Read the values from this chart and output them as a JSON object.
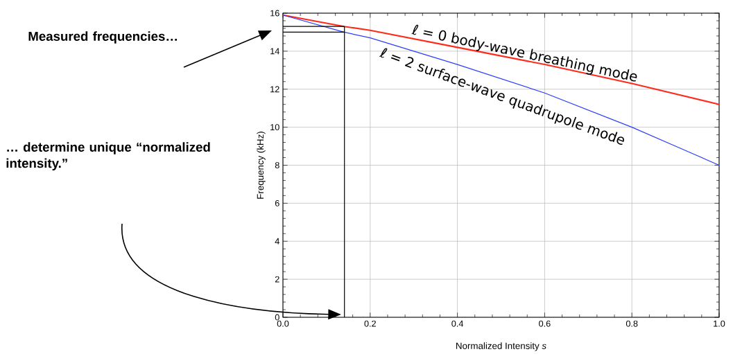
{
  "chart_data": {
    "type": "line",
    "xlabel": "Normalized Intensity *s*",
    "ylabel": "Frequency (kHz)",
    "xlim": [
      0,
      1
    ],
    "ylim": [
      0,
      16
    ],
    "xticks": [
      {
        "value": 0,
        "label": "0.0"
      },
      {
        "value": 0.2,
        "label": "0.2"
      },
      {
        "value": 0.4,
        "label": "0.4"
      },
      {
        "value": 0.6,
        "label": "0.6"
      },
      {
        "value": 0.8,
        "label": "0.8"
      },
      {
        "value": 1,
        "label": "1.0"
      }
    ],
    "yticks": [
      0,
      2,
      4,
      6,
      8,
      10,
      12,
      14,
      16
    ],
    "grid": true,
    "series": [
      {
        "name": "ℓ = 0 body-wave breathing mode",
        "color": "#ff2a1a",
        "x": [
          0,
          0.14,
          0.2,
          0.4,
          0.6,
          0.8,
          1.0
        ],
        "values": [
          15.9,
          15.3,
          15.1,
          14.2,
          13.3,
          12.3,
          11.2
        ]
      },
      {
        "name": "ℓ = 2 surface-wave quadrupole mode",
        "color": "#2a3cff",
        "x": [
          0,
          0.14,
          0.2,
          0.4,
          0.6,
          0.8,
          0.9,
          1.0
        ],
        "values": [
          15.9,
          15.0,
          14.7,
          13.3,
          11.8,
          10.0,
          9.0,
          8.0
        ]
      },
      {
        "color": "#000000",
        "x": [
          0,
          0.141
        ],
        "values": [
          15.3,
          15.3
        ]
      },
      {
        "color": "#000000",
        "x": [
          0,
          0.141
        ],
        "values": [
          15.0,
          15.0
        ]
      },
      {
        "color": "#000000",
        "x": [
          0.141,
          0.141
        ],
        "values": [
          0,
          15.3
        ]
      }
    ],
    "annotations": [
      "Measured frequencies…",
      "… determine unique “normalized intensity.”"
    ]
  }
}
